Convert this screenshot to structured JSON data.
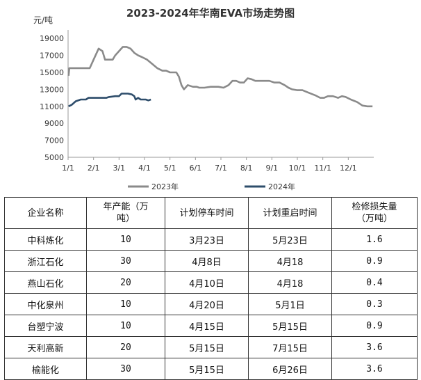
{
  "chart_data": {
    "type": "line",
    "title": "2023-2024年华南EVA市场走势图",
    "ylabel": "元/吨",
    "xlabel": "",
    "ylim": [
      5000,
      20000
    ],
    "yticks": [
      5000,
      7000,
      9000,
      11000,
      13000,
      15000,
      17000,
      19000
    ],
    "xlim": [
      0,
      12
    ],
    "xticks": [
      {
        "v": 0,
        "label": "1/1"
      },
      {
        "v": 1,
        "label": "2/1"
      },
      {
        "v": 2,
        "label": "3/1"
      },
      {
        "v": 3,
        "label": "4/1"
      },
      {
        "v": 4,
        "label": "5/1"
      },
      {
        "v": 5,
        "label": "6/1"
      },
      {
        "v": 6,
        "label": "7/1"
      },
      {
        "v": 7,
        "label": "8/1"
      },
      {
        "v": 8,
        "label": "9/1"
      },
      {
        "v": 9,
        "label": "10/1"
      },
      {
        "v": 10,
        "label": "11/1"
      },
      {
        "v": 11,
        "label": "12/1"
      }
    ],
    "grid": false,
    "legend": "bottom",
    "series": [
      {
        "name": "2023年",
        "color": "#8a8a8a",
        "points": [
          [
            0.02,
            14600
          ],
          [
            0.05,
            15500
          ],
          [
            0.25,
            15500
          ],
          [
            0.6,
            15500
          ],
          [
            0.85,
            15500
          ],
          [
            1.0,
            16500
          ],
          [
            1.2,
            17800
          ],
          [
            1.35,
            17500
          ],
          [
            1.45,
            16500
          ],
          [
            1.6,
            16500
          ],
          [
            1.75,
            16500
          ],
          [
            1.85,
            17000
          ],
          [
            2.0,
            17500
          ],
          [
            2.15,
            18000
          ],
          [
            2.3,
            18000
          ],
          [
            2.45,
            17800
          ],
          [
            2.6,
            17300
          ],
          [
            2.75,
            17000
          ],
          [
            2.9,
            16800
          ],
          [
            3.1,
            16500
          ],
          [
            3.3,
            16000
          ],
          [
            3.5,
            15500
          ],
          [
            3.7,
            15200
          ],
          [
            3.85,
            15200
          ],
          [
            4.0,
            15000
          ],
          [
            4.25,
            15000
          ],
          [
            4.35,
            14500
          ],
          [
            4.45,
            13500
          ],
          [
            4.55,
            13000
          ],
          [
            4.7,
            13500
          ],
          [
            4.9,
            13300
          ],
          [
            5.05,
            13300
          ],
          [
            5.15,
            13200
          ],
          [
            5.35,
            13200
          ],
          [
            5.6,
            13300
          ],
          [
            5.9,
            13300
          ],
          [
            6.1,
            13200
          ],
          [
            6.3,
            13500
          ],
          [
            6.45,
            14000
          ],
          [
            6.6,
            14000
          ],
          [
            6.75,
            13800
          ],
          [
            6.9,
            13800
          ],
          [
            7.05,
            14300
          ],
          [
            7.2,
            14200
          ],
          [
            7.35,
            14000
          ],
          [
            7.6,
            14000
          ],
          [
            7.9,
            14000
          ],
          [
            8.1,
            13800
          ],
          [
            8.3,
            13800
          ],
          [
            8.5,
            13500
          ],
          [
            8.65,
            13200
          ],
          [
            8.8,
            13000
          ],
          [
            9.0,
            12900
          ],
          [
            9.2,
            12900
          ],
          [
            9.45,
            12600
          ],
          [
            9.7,
            12300
          ],
          [
            9.9,
            12000
          ],
          [
            10.05,
            12000
          ],
          [
            10.2,
            12200
          ],
          [
            10.4,
            12200
          ],
          [
            10.6,
            12000
          ],
          [
            10.75,
            12200
          ],
          [
            10.9,
            12100
          ],
          [
            11.1,
            11800
          ],
          [
            11.35,
            11500
          ],
          [
            11.55,
            11100
          ],
          [
            11.75,
            11000
          ],
          [
            11.95,
            11000
          ]
        ]
      },
      {
        "name": "2024年",
        "color": "#2e4d6b",
        "points": [
          [
            0.02,
            11000
          ],
          [
            0.15,
            11200
          ],
          [
            0.3,
            11600
          ],
          [
            0.5,
            11800
          ],
          [
            0.7,
            11800
          ],
          [
            0.8,
            12000
          ],
          [
            1.0,
            12000
          ],
          [
            1.2,
            12000
          ],
          [
            1.4,
            12000
          ],
          [
            1.5,
            12000
          ],
          [
            1.6,
            12100
          ],
          [
            1.85,
            12200
          ],
          [
            2.0,
            12200
          ],
          [
            2.1,
            12500
          ],
          [
            2.35,
            12500
          ],
          [
            2.5,
            12400
          ],
          [
            2.6,
            12200
          ],
          [
            2.65,
            11800
          ],
          [
            2.75,
            12000
          ],
          [
            2.85,
            11800
          ],
          [
            3.05,
            11800
          ],
          [
            3.15,
            11700
          ],
          [
            3.25,
            11800
          ]
        ]
      }
    ]
  },
  "table": {
    "headers": [
      "企业名称",
      "年产能（万\n吨）",
      "计划停车时间",
      "计划重启时间",
      "检修损失量\n（万吨）"
    ],
    "rows": [
      [
        "中科炼化",
        "10",
        "3月23日",
        "5月23日",
        "1.6"
      ],
      [
        "浙江石化",
        "30",
        "4月8日",
        "4月18",
        "0.9"
      ],
      [
        "燕山石化",
        "20",
        "4月10日",
        "4月18",
        "0.4"
      ],
      [
        "中化泉州",
        "10",
        "4月20日",
        "5月1日",
        "0.3"
      ],
      [
        "台塑宁波",
        "10",
        "4月15日",
        "5月15日",
        "0.9"
      ],
      [
        "天利高新",
        "20",
        "5月15日",
        "7月15日",
        "3.6"
      ],
      [
        "榆能化",
        "30",
        "5月15日",
        "6月26日",
        "3.6"
      ]
    ]
  }
}
